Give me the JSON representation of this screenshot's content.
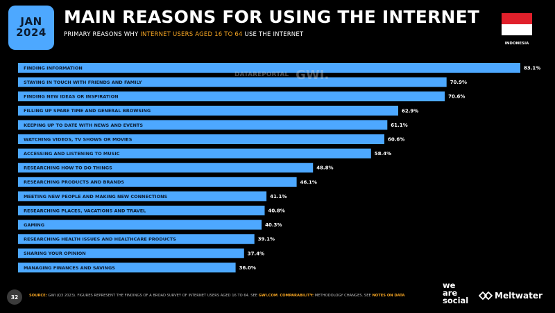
{
  "header": {
    "month": "JAN",
    "year": "2024",
    "title": "MAIN REASONS FOR USING THE INTERNET",
    "subtitle_pre": "PRIMARY REASONS WHY ",
    "subtitle_highlight": "INTERNET USERS AGED 16 TO 64",
    "subtitle_post": " USE THE INTERNET"
  },
  "country": "INDONESIA",
  "flag_colors": {
    "top": "#e0202b",
    "bottom": "#ffffff"
  },
  "accent_color": "#4da8ff",
  "watermark": {
    "datareportal": "DATAREPORTAL",
    "gwi": "GWI."
  },
  "chart_data": {
    "type": "bar",
    "orientation": "horizontal",
    "categories": [
      "FINDING INFORMATION",
      "STAYING IN TOUCH WITH FRIENDS AND FAMILY",
      "FINDING NEW IDEAS OR INSPIRATION",
      "FILLING UP SPARE TIME AND GENERAL BROWSING",
      "KEEPING UP TO DATE WITH NEWS AND EVENTS",
      "WATCHING VIDEOS, TV SHOWS OR MOVIES",
      "ACCESSING AND LISTENING TO MUSIC",
      "RESEARCHING HOW TO DO THINGS",
      "RESEARCHING PRODUCTS AND BRANDS",
      "MEETING NEW PEOPLE AND MAKING NEW CONNECTIONS",
      "RESEARCHING PLACES, VACATIONS AND TRAVEL",
      "GAMING",
      "RESEARCHING HEALTH ISSUES AND HEALTHCARE PRODUCTS",
      "SHARING YOUR OPINION",
      "MANAGING FINANCES AND SAVINGS"
    ],
    "values": [
      83.1,
      70.9,
      70.6,
      62.9,
      61.1,
      60.6,
      58.4,
      48.8,
      46.1,
      41.1,
      40.8,
      40.3,
      39.1,
      37.4,
      36.0
    ],
    "value_labels": [
      "83.1%",
      "70.9%",
      "70.6%",
      "62.9%",
      "61.1%",
      "60.6%",
      "58.4%",
      "48.8%",
      "46.1%",
      "41.1%",
      "40.8%",
      "40.3%",
      "39.1%",
      "37.4%",
      "36.0%"
    ],
    "unit": "%",
    "bar_color": "#4da8ff",
    "xlim": [
      0,
      100
    ],
    "grid": false,
    "legend": "none"
  },
  "footer": {
    "page_number": "32",
    "source_label": "SOURCE:",
    "source_text": " GWI (Q3 2023). FIGURES REPRESENT THE FINDINGS OF A BROAD SURVEY OF INTERNET USERS AGED 16 TO 64. SEE ",
    "source_link": "GWI.COM",
    "source_text2": ". ",
    "comparability_label": "COMPARABILITY:",
    "comparability_text": " METHODOLOGY CHANGES. SEE ",
    "comparability_link": "NOTES ON DATA",
    "logo_was_1": "we",
    "logo_was_2": "are",
    "logo_was_3": "social",
    "logo_meltwater": "Meltwater"
  }
}
